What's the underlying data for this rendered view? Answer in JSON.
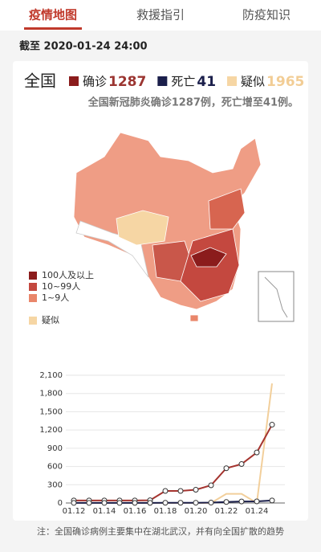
{
  "tabs": [
    "疫情地图",
    "救援指引",
    "防疫知识"
  ],
  "date": "截至 2020-01-24 24:00",
  "summary": {
    "region": "全国",
    "items": [
      {
        "label": "确诊",
        "value": 1287,
        "color": "#8b1c1c",
        "text_color": "#9b3531"
      },
      {
        "label": "死亡",
        "value": 41,
        "color": "#1b1f4b",
        "text_color": "#1b1f4b"
      },
      {
        "label": "疑似",
        "value": 1965,
        "color": "#f6d6a4",
        "text_color": "#f2cd95"
      }
    ]
  },
  "headline": "全国新冠肺炎确诊1287例，死亡增至41例。",
  "map_legend": [
    {
      "label": "100人及以上",
      "color": "#8b1c1c"
    },
    {
      "label": "10~99人",
      "color": "#c4483f"
    },
    {
      "label": "1~9人",
      "color": "#e9866a"
    },
    {
      "label": "疑似",
      "color": "#f6d6a4"
    }
  ],
  "chart_data": {
    "type": "line",
    "categories": [
      "01.12",
      null,
      "01.14",
      null,
      "01.16",
      null,
      "01.18",
      null,
      "01.20",
      null,
      "01.22",
      null,
      "01.24",
      null
    ],
    "series": [
      {
        "name": "确诊",
        "color": "#a5342f",
        "values": [
          41,
          41,
          41,
          41,
          41,
          45,
          198,
          198,
          218,
          291,
          571,
          640,
          830,
          1287
        ]
      },
      {
        "name": "死亡",
        "color": "#1b1f4b",
        "values": [
          1,
          1,
          1,
          1,
          2,
          2,
          3,
          3,
          4,
          6,
          17,
          25,
          26,
          41
        ]
      },
      {
        "name": "疑似",
        "color": "#f2cf9b",
        "values": [
          0,
          0,
          0,
          0,
          0,
          0,
          0,
          0,
          0,
          0,
          150,
          150,
          0,
          1965
        ]
      }
    ],
    "ylim": [
      0,
      2100
    ],
    "yticks": [
      0,
      300,
      600,
      900,
      {
        "value": 1200,
        "label": "1,200"
      },
      {
        "value": 1500,
        "label": "1,500"
      },
      {
        "value": 1800,
        "label": "1,800"
      },
      {
        "value": 2100,
        "label": "2,100"
      }
    ]
  },
  "note": "注：全国确诊病例主要集中在湖北武汉，并有向全国扩散的趋势"
}
